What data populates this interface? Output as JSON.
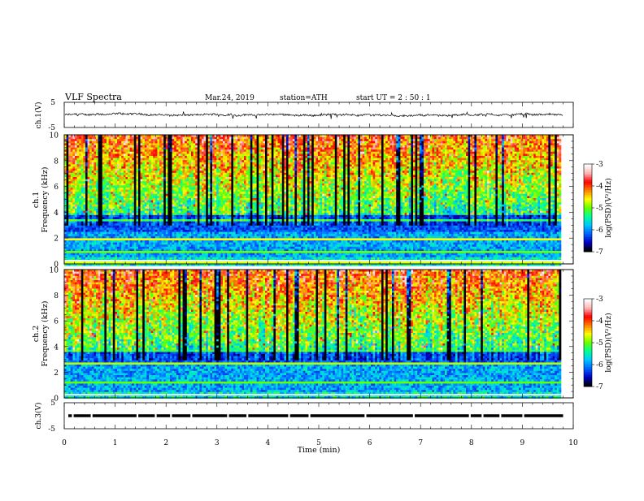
{
  "header": {
    "title": "VLF  Spectra",
    "date": "Mar.24, 2019",
    "station": "station=ATH",
    "start": "start  UT  =   2  : 50 : 1"
  },
  "chart_data": {
    "type": "heatmap",
    "x": {
      "label": "Time  (min)",
      "range": [
        0,
        10
      ],
      "ticks": [
        "0",
        "1",
        "2",
        "3",
        "4",
        "5",
        "6",
        "7",
        "8",
        "9",
        "10"
      ],
      "data_end": 9.8
    },
    "channels": [
      {
        "id": "ch1-waveform",
        "type": "line",
        "ylabel": "ch.1(V)",
        "ylim": [
          -5,
          5
        ],
        "ticks": [
          "5",
          "-5"
        ]
      },
      {
        "id": "ch1-spectrogram",
        "type": "heatmap",
        "ylabel_top": "ch.1",
        "ylabel": "Frequency  (kHz)",
        "ylim": [
          0,
          10
        ],
        "ticks": [
          "0",
          "2",
          "4",
          "6",
          "8",
          "10"
        ]
      },
      {
        "id": "ch2-spectrogram",
        "type": "heatmap",
        "ylabel_top": "ch.2",
        "ylabel": "Frequency  (kHz)",
        "ylim": [
          0,
          10
        ],
        "ticks": [
          "0",
          "2",
          "4",
          "6",
          "8",
          "10"
        ]
      },
      {
        "id": "ch3-waveform",
        "type": "line",
        "ylabel": "ch.3(V)",
        "ylim": [
          -5,
          5
        ],
        "ticks": [
          "5",
          "-5"
        ]
      }
    ],
    "colorbar": {
      "label": "log(PSD)(V²/Hz)",
      "range": [
        -7,
        -3
      ],
      "ticks": [
        "-3",
        "-4",
        "-5",
        "-6",
        "-7"
      ],
      "colormap": [
        "#000000",
        "#0000c8",
        "#0064ff",
        "#00c8ff",
        "#00ff96",
        "#64ff00",
        "#ffff00",
        "#ff8000",
        "#ff0000",
        "#ffb4b4",
        "#ffffff"
      ]
    }
  }
}
